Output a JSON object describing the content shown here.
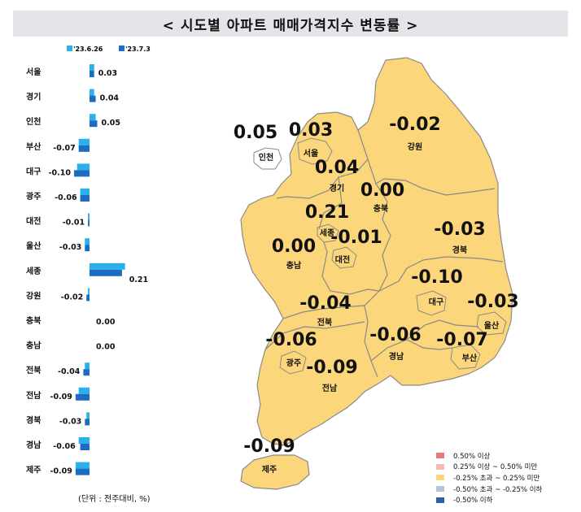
{
  "title": "< 시도별 아파트 매매가격지수 변동률 >",
  "unit_note": "(단위 : 전주대비, %)",
  "colors": {
    "series_prev": "#2ab0ea",
    "series_curr": "#1c6cc4",
    "map_fill": "#fcd67a",
    "map_border": "#8a8a8a",
    "title_bg": "#e4e5e8"
  },
  "chart_data": {
    "type": "bar",
    "orientation": "horizontal",
    "categories": [
      "서울",
      "경기",
      "인천",
      "부산",
      "대구",
      "광주",
      "대전",
      "울산",
      "세종",
      "강원",
      "충북",
      "충남",
      "전북",
      "전남",
      "경북",
      "경남",
      "제주"
    ],
    "series": [
      {
        "name": "'23.6.26",
        "values": [
          0.03,
          0.03,
          0.04,
          -0.07,
          -0.08,
          -0.06,
          -0.01,
          -0.03,
          0.23,
          -0.01,
          0.0,
          0.0,
          -0.03,
          -0.07,
          -0.02,
          -0.07,
          -0.09
        ]
      },
      {
        "name": "'23.7.3",
        "values": [
          0.03,
          0.04,
          0.05,
          -0.07,
          -0.1,
          -0.06,
          -0.01,
          -0.03,
          0.21,
          -0.02,
          0.0,
          0.0,
          -0.04,
          -0.09,
          -0.03,
          -0.06,
          -0.09
        ]
      }
    ],
    "data_labels": [
      "0.03",
      "0.04",
      "0.05",
      "-0.07",
      "-0.10",
      "-0.06",
      "-0.01",
      "-0.03",
      "0.21",
      "-0.02",
      "0.00",
      "0.00",
      "-0.04",
      "-0.09",
      "-0.03",
      "-0.06",
      "-0.09"
    ],
    "legend_position": "top",
    "grid": false
  },
  "map": {
    "regions": [
      {
        "name": "서울",
        "value": "0.03"
      },
      {
        "name": "인천",
        "value": "0.05"
      },
      {
        "name": "경기",
        "value": "0.04"
      },
      {
        "name": "강원",
        "value": "-0.02"
      },
      {
        "name": "충북",
        "value": "0.00"
      },
      {
        "name": "세종",
        "value": "0.21"
      },
      {
        "name": "충남",
        "value": "0.00"
      },
      {
        "name": "대전",
        "value": "-0.01"
      },
      {
        "name": "경북",
        "value": "-0.03"
      },
      {
        "name": "대구",
        "value": "-0.10"
      },
      {
        "name": "전북",
        "value": "-0.04"
      },
      {
        "name": "울산",
        "value": "-0.03"
      },
      {
        "name": "광주",
        "value": "-0.06"
      },
      {
        "name": "경남",
        "value": "-0.06"
      },
      {
        "name": "부산",
        "value": "-0.07"
      },
      {
        "name": "전남",
        "value": "-0.09"
      },
      {
        "name": "제주",
        "value": "-0.09"
      }
    ]
  },
  "legend": [
    {
      "label": "0.50% 이상",
      "color": "#e8787a"
    },
    {
      "label": "0.25% 이상 ~ 0.50% 미만",
      "color": "#f7b9b5"
    },
    {
      "label": "-0.25% 초과 ~ 0.25% 미만",
      "color": "#fcd67a"
    },
    {
      "label": "-0.50% 초과 ~ -0.25% 이하",
      "color": "#b3c4de"
    },
    {
      "label": "-0.50% 이하",
      "color": "#2f5fa8"
    }
  ]
}
